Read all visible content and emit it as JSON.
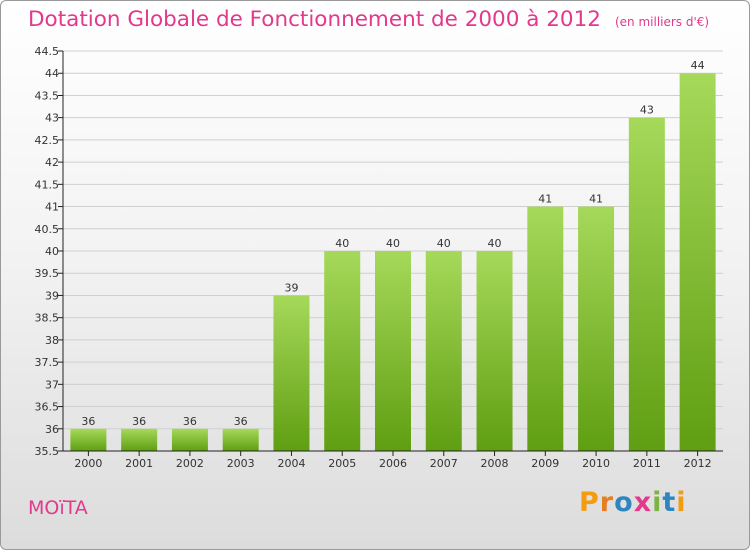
{
  "header": {
    "title": "Dotation Globale de Fonctionnement de 2000 à 2012",
    "subtitle": "(en milliers d'€)"
  },
  "footer": {
    "place_name": "MOïTA",
    "logo_text": "Proxiti"
  },
  "colors": {
    "title": "#e2398c",
    "bar_top": "#a6d95a",
    "bar_bottom": "#5f9e12",
    "axis": "#222222",
    "grid": "#cfcfcf"
  },
  "chart_data": {
    "type": "bar",
    "categories": [
      "2000",
      "2001",
      "2002",
      "2003",
      "2004",
      "2005",
      "2006",
      "2007",
      "2008",
      "2009",
      "2010",
      "2011",
      "2012"
    ],
    "values": [
      36,
      36,
      36,
      36,
      39,
      40,
      40,
      40,
      40,
      41,
      41,
      43,
      44
    ],
    "data_labels": [
      "36",
      "36",
      "36",
      "36",
      "39",
      "40",
      "40",
      "40",
      "40",
      "41",
      "41",
      "43",
      "44"
    ],
    "ylim": [
      35.5,
      44.5
    ],
    "yticks": [
      "35.5",
      "36",
      "36.5",
      "37",
      "37.5",
      "38",
      "38.5",
      "39",
      "39.5",
      "40",
      "40.5",
      "41",
      "41.5",
      "42",
      "42.5",
      "43",
      "43.5",
      "44",
      "44.5"
    ],
    "grid": true,
    "legend": "none"
  }
}
